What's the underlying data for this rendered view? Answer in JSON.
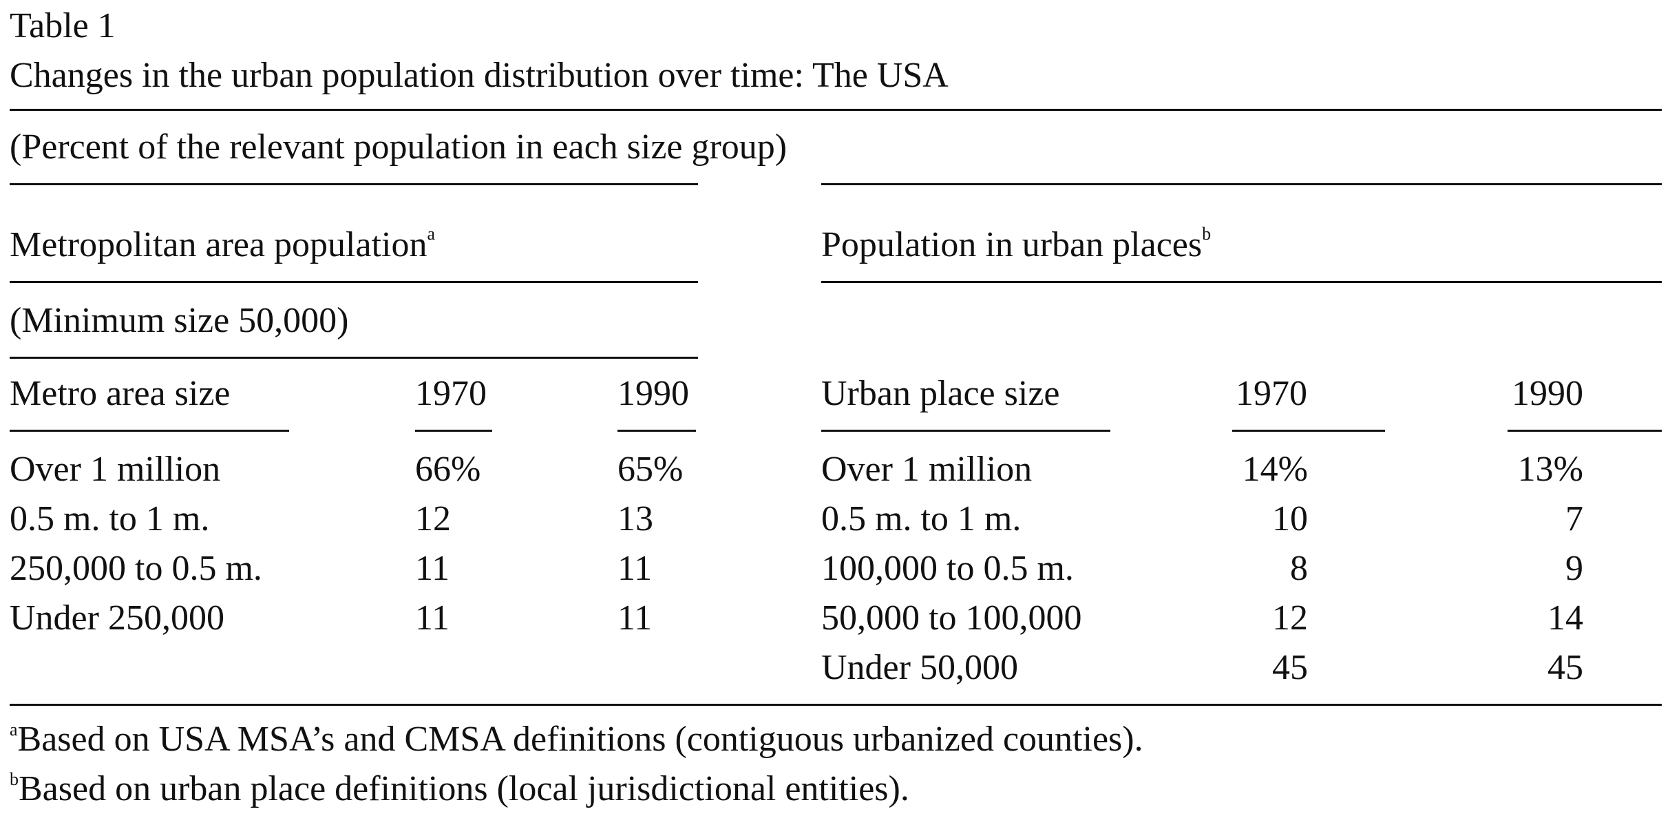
{
  "table": {
    "label": "Table 1",
    "title": "Changes in the urban population distribution over time: The USA",
    "subtitle": "(Percent of the relevant population in each size group)",
    "left": {
      "heading": "Metropolitan area population",
      "heading_note": "a",
      "subheading": "(Minimum size 50,000)",
      "columns": [
        "Metro area size",
        "1970",
        "1990"
      ],
      "rows": [
        {
          "size": "Over 1 million",
          "y1970": "66%",
          "y1990": "65%"
        },
        {
          "size": "0.5 m. to 1 m.",
          "y1970": "12",
          "y1990": "13"
        },
        {
          "size": "250,000 to 0.5 m.",
          "y1970": "11",
          "y1990": "11"
        },
        {
          "size": "Under 250,000",
          "y1970": "11",
          "y1990": "11"
        }
      ]
    },
    "right": {
      "heading": "Population in urban places",
      "heading_note": "b",
      "columns": [
        "Urban place size",
        "1970",
        "1990"
      ],
      "rows": [
        {
          "size": "Over 1 million",
          "y1970": "14%",
          "y1990": "13%"
        },
        {
          "size": "0.5 m. to 1 m.",
          "y1970": "10",
          "y1990": "7"
        },
        {
          "size": "100,000 to 0.5 m.",
          "y1970": "8",
          "y1990": "9"
        },
        {
          "size": "50,000 to 100,000",
          "y1970": "12",
          "y1990": "14"
        },
        {
          "size": "Under 50,000",
          "y1970": "45",
          "y1990": "45"
        }
      ]
    },
    "footnotes": [
      {
        "mark": "a",
        "text": "Based on USA MSA’s and CMSA definitions (contiguous urbanized counties)."
      },
      {
        "mark": "b",
        "text": "Based on urban place definitions (local jurisdictional entities)."
      }
    ]
  }
}
